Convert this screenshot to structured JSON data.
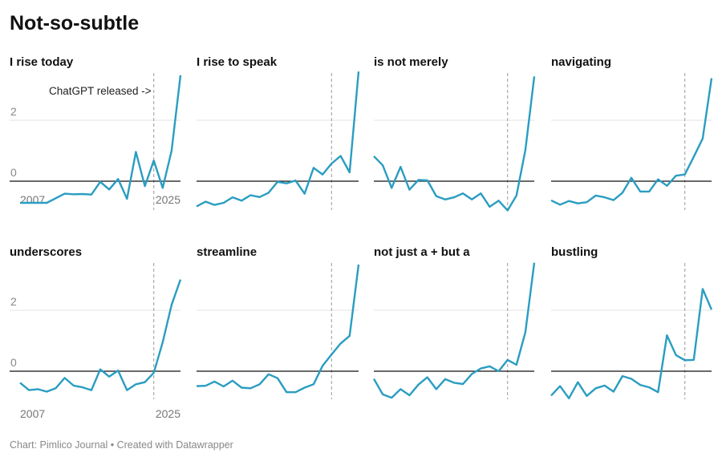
{
  "chart_data": {
    "type": "line",
    "title": "Not-so-subtle",
    "layout": "small-multiples 4x2",
    "x": [
      2007,
      2008,
      2009,
      2010,
      2011,
      2012,
      2013,
      2014,
      2015,
      2016,
      2017,
      2018,
      2019,
      2020,
      2021,
      2022,
      2023,
      2024,
      2025
    ],
    "x_tick_labels": [
      "2007",
      "2025"
    ],
    "y_ticks": [
      0,
      2
    ],
    "y_tick_labels": [
      "0",
      "2"
    ],
    "ylim": [
      -1,
      3.7
    ],
    "grid": "horizontal",
    "line_color": "#2a9dc1",
    "reference_line": {
      "x": 2022,
      "label": "ChatGPT released ->",
      "style": "dashed"
    },
    "series": [
      {
        "name": "I rise today",
        "values": [
          -0.71,
          -0.71,
          -0.71,
          -0.71,
          -0.56,
          -0.41,
          -0.43,
          -0.42,
          -0.44,
          -0.02,
          -0.27,
          0.07,
          -0.58,
          0.96,
          -0.16,
          0.68,
          -0.22,
          1.0,
          3.48
        ]
      },
      {
        "name": "I rise to speak",
        "values": [
          -0.83,
          -0.67,
          -0.78,
          -0.71,
          -0.53,
          -0.64,
          -0.46,
          -0.52,
          -0.38,
          -0.02,
          -0.07,
          0.02,
          -0.41,
          0.44,
          0.22,
          0.58,
          0.83,
          0.29,
          3.6
        ]
      },
      {
        "name": "is not merely",
        "values": [
          0.82,
          0.52,
          -0.22,
          0.47,
          -0.28,
          0.04,
          0.03,
          -0.49,
          -0.6,
          -0.53,
          -0.4,
          -0.6,
          -0.4,
          -0.84,
          -0.64,
          -0.96,
          -0.47,
          1.02,
          3.44
        ]
      },
      {
        "name": "navigating",
        "values": [
          -0.63,
          -0.77,
          -0.65,
          -0.73,
          -0.69,
          -0.47,
          -0.53,
          -0.62,
          -0.38,
          0.11,
          -0.34,
          -0.34,
          0.06,
          -0.15,
          0.18,
          0.22,
          0.8,
          1.4,
          3.38
        ]
      },
      {
        "name": "underscores",
        "values": [
          -0.38,
          -0.62,
          -0.59,
          -0.67,
          -0.56,
          -0.22,
          -0.47,
          -0.53,
          -0.62,
          0.06,
          -0.18,
          0.02,
          -0.62,
          -0.43,
          -0.36,
          -0.05,
          0.95,
          2.18,
          3.01
        ]
      },
      {
        "name": "streamline",
        "values": [
          -0.49,
          -0.48,
          -0.34,
          -0.5,
          -0.31,
          -0.54,
          -0.56,
          -0.43,
          -0.1,
          -0.23,
          -0.69,
          -0.69,
          -0.54,
          -0.43,
          0.18,
          0.55,
          0.91,
          1.16,
          3.5
        ]
      },
      {
        "name": "not just a + but a",
        "values": [
          -0.25,
          -0.76,
          -0.87,
          -0.59,
          -0.79,
          -0.44,
          -0.2,
          -0.59,
          -0.26,
          -0.38,
          -0.42,
          -0.09,
          0.09,
          0.16,
          0,
          0.37,
          0.21,
          1.28,
          3.56
        ]
      },
      {
        "name": "bustling",
        "values": [
          -0.8,
          -0.49,
          -0.89,
          -0.36,
          -0.81,
          -0.56,
          -0.47,
          -0.67,
          -0.16,
          -0.25,
          -0.45,
          -0.53,
          -0.69,
          1.18,
          0.53,
          0.36,
          0.37,
          2.7,
          2.02
        ]
      }
    ]
  },
  "footer": "Chart: Pimlico Journal • Created with Datawrapper"
}
